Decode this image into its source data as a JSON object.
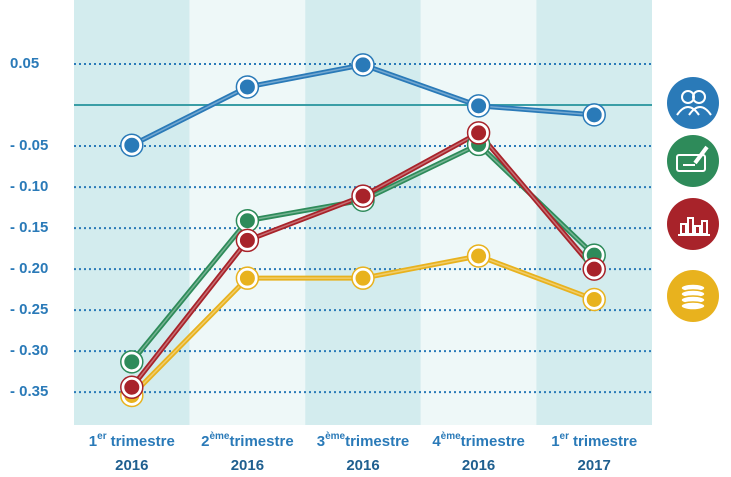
{
  "chart_data": {
    "type": "line",
    "categories": [
      {
        "ordinal": "1",
        "suffix": "er",
        "label": "trimestre",
        "year": "2016"
      },
      {
        "ordinal": "2",
        "suffix": "ème",
        "label": "trimestre",
        "year": "2016"
      },
      {
        "ordinal": "3",
        "suffix": "ème",
        "label": "trimestre",
        "year": "2016"
      },
      {
        "ordinal": "4",
        "suffix": "ème",
        "label": "trimestre",
        "year": "2016"
      },
      {
        "ordinal": "1",
        "suffix": "er",
        "label": "trimestre",
        "year": "2017"
      }
    ],
    "series": [
      {
        "color": "#e8b21e",
        "values": [
          -0.354,
          -0.211,
          -0.211,
          -0.184,
          -0.237
        ]
      },
      {
        "color": "#2e8b5a",
        "values": [
          -0.313,
          -0.141,
          -0.116,
          -0.048,
          -0.183
        ]
      },
      {
        "color": "#a8232a",
        "values": [
          -0.344,
          -0.165,
          -0.111,
          -0.034,
          -0.2
        ]
      },
      {
        "color": "#2a7ab8",
        "values": [
          -0.049,
          0.022,
          0.049,
          -0.001,
          -0.012
        ]
      }
    ],
    "ylim": [
      -0.39,
      0.128
    ],
    "yticks": [
      0.05,
      {
        "value": -0.05,
        "label": "- 0.05"
      },
      {
        "value": -0.1,
        "label": "- 0.10"
      },
      {
        "value": -0.15,
        "label": "- 0.15"
      },
      {
        "value": -0.2,
        "label": "- 0.20"
      },
      {
        "value": -0.25,
        "label": "- 0.25"
      },
      {
        "value": -0.3,
        "label": "- 0.30"
      },
      {
        "value": -0.35,
        "label": "- 0.35"
      }
    ],
    "reference_line": 0,
    "grid": true
  }
}
